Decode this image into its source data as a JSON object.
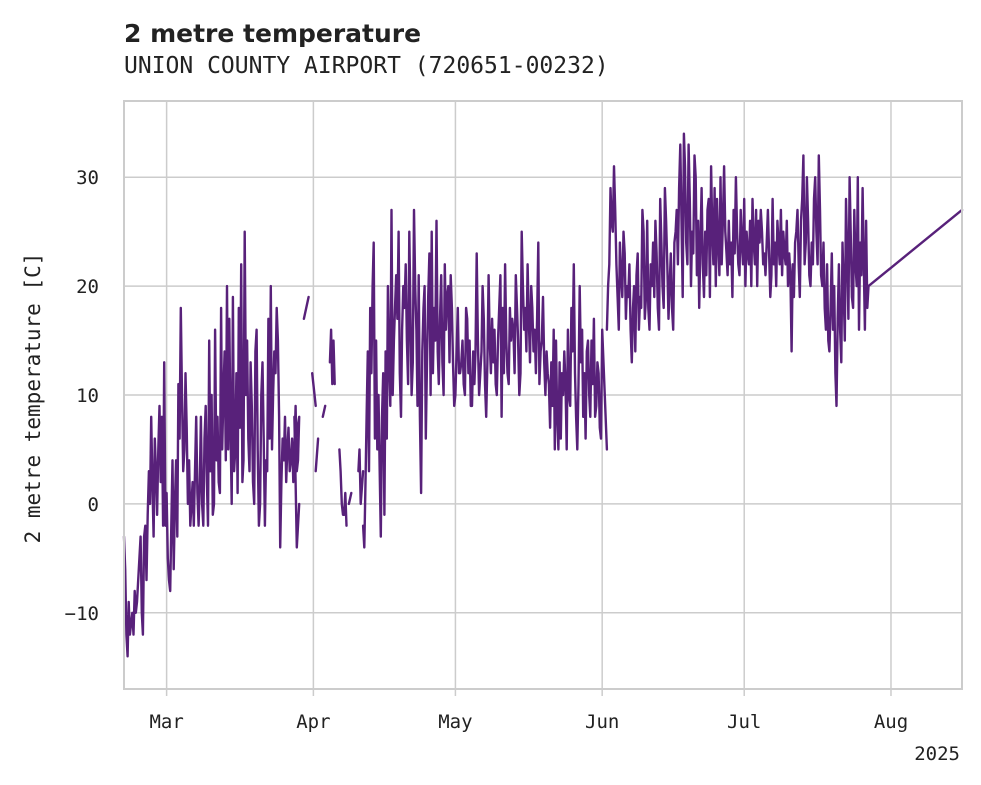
{
  "chart_data": {
    "type": "line",
    "title": "2 metre temperature",
    "subtitle": "UNION COUNTY AIRPORT (720651-00232)",
    "xlabel": "",
    "ylabel": "2 metre temperature [C]",
    "x_unit": "day of year 2025 (Feb 1 = 32)",
    "xlim": [
      51,
      228
    ],
    "ylim": [
      -17,
      37
    ],
    "year_label": "2025",
    "grid": true,
    "x_ticks": [
      {
        "label": "Mar",
        "value": 60
      },
      {
        "label": "Apr",
        "value": 91
      },
      {
        "label": "May",
        "value": 121
      },
      {
        "label": "Jun",
        "value": 152
      },
      {
        "label": "Jul",
        "value": 182
      },
      {
        "label": "Aug",
        "value": 213
      }
    ],
    "y_ticks": [
      {
        "label": "−10",
        "value": -10
      },
      {
        "label": "0",
        "value": 0
      },
      {
        "label": "10",
        "value": 10
      },
      {
        "label": "20",
        "value": 20
      },
      {
        "label": "30",
        "value": 30
      }
    ],
    "series": [
      {
        "name": "2 metre temperature",
        "color": "#58217a",
        "segments": [
          {
            "start": 51,
            "end": 87,
            "step": 0.25,
            "values": [
              -3,
              -6,
              -12,
              -14,
              -9,
              -12,
              -11,
              -10,
              -12,
              -8,
              -10,
              -9,
              -7,
              -5,
              -3,
              -10,
              -12,
              -3,
              -2,
              -7,
              -1,
              3,
              0,
              8,
              2,
              -3,
              6,
              3,
              -1,
              5,
              9,
              2,
              8,
              -2,
              13,
              -2,
              1,
              -5,
              -7,
              -8,
              -2,
              4,
              -6,
              0,
              4,
              -3,
              11,
              6,
              18,
              10,
              3,
              5,
              12,
              7,
              0,
              4,
              -2,
              0,
              2,
              -2,
              3,
              8,
              1,
              -2,
              2,
              8,
              0,
              -2,
              6,
              9,
              2,
              -2,
              15,
              3,
              10,
              -1,
              0,
              16,
              4,
              8,
              2,
              1,
              18,
              5,
              10,
              14,
              4,
              20,
              5,
              17,
              7,
              0,
              19,
              3,
              5,
              12,
              1,
              18,
              7,
              22,
              2,
              4,
              25,
              10,
              15,
              6,
              3,
              13,
              9,
              2,
              0,
              14,
              16,
              5,
              -2,
              0,
              10,
              13,
              6,
              -2,
              4,
              3,
              17,
              6,
              20,
              5,
              10,
              14,
              12,
              18,
              15,
              8,
              -4,
              2,
              6,
              4,
              8,
              2,
              5,
              7,
              3,
              4,
              6,
              2,
              5,
              9,
              3,
              4,
              8,
              5
            ]
          },
          {
            "start": 87,
            "end": 88,
            "step": 0.25,
            "values": [
              8,
              2,
              -4,
              0
            ]
          },
          {
            "start": 89,
            "end": 90,
            "step": 0.25,
            "values": [
              17,
              19
            ]
          },
          {
            "start": 90.75,
            "end": 91.5,
            "step": 0.25,
            "values": [
              12,
              9
            ]
          },
          {
            "start": 91.5,
            "end": 92,
            "step": 0.25,
            "values": [
              3,
              6
            ]
          },
          {
            "start": 93,
            "end": 93.5,
            "step": 0.25,
            "values": [
              8,
              9
            ]
          },
          {
            "start": 94.5,
            "end": 95.5,
            "step": 0.25,
            "values": [
              13,
              16,
              11,
              15,
              11
            ]
          },
          {
            "start": 96.5,
            "end": 98,
            "step": 0.25,
            "values": [
              5,
              3,
              0,
              -1,
              -1,
              1,
              -2
            ]
          },
          {
            "start": 98.5,
            "end": 99,
            "step": 0.25,
            "values": [
              0,
              1
            ]
          },
          {
            "start": 100.5,
            "end": 101.5,
            "step": 0.25,
            "values": [
              3,
              5,
              0,
              3
            ]
          },
          {
            "start": 101.5,
            "end": 153,
            "step": 0.25,
            "values": [
              -2,
              -4,
              2,
              8,
              14,
              3,
              18,
              12,
              20,
              24,
              6,
              15,
              5,
              10,
              3,
              -3,
              8,
              12,
              -1,
              14,
              6,
              20,
              13,
              9,
              27,
              10,
              15,
              18,
              21,
              17,
              25,
              12,
              8,
              16,
              20,
              18,
              22,
              15,
              11,
              25,
              18,
              10,
              13,
              27,
              20,
              16,
              9,
              21,
              8,
              1,
              14,
              18,
              20,
              6,
              13,
              19,
              23,
              10,
              25,
              12,
              18,
              15,
              26,
              14,
              11,
              17,
              21,
              13,
              10,
              22,
              16,
              19,
              20,
              13,
              21,
              18,
              13,
              9,
              10,
              14,
              18,
              12,
              12,
              13,
              15,
              11,
              10,
              18,
              17,
              12,
              15,
              9,
              9,
              14,
              11,
              14,
              23,
              15,
              10,
              12,
              14,
              20,
              17,
              11,
              8,
              13,
              21,
              15,
              12,
              17,
              13,
              16,
              11,
              10,
              15,
              18,
              21,
              8,
              18,
              12,
              22,
              15,
              12,
              11,
              18,
              15,
              17,
              16,
              12,
              21,
              18,
              15,
              10,
              12,
              25,
              20,
              16,
              18,
              14,
              22,
              17,
              13,
              20,
              18,
              14,
              16,
              12,
              17,
              24,
              11,
              14,
              15,
              19,
              13,
              10,
              14,
              12,
              11,
              7,
              13,
              9,
              16,
              5,
              15,
              8,
              5,
              13,
              6,
              12,
              10,
              14,
              11,
              5,
              16,
              10,
              9,
              18,
              14,
              22,
              12,
              8,
              5,
              11,
              20,
              13,
              16,
              8,
              12,
              6,
              14,
              15,
              10,
              8,
              15,
              11,
              17,
              8,
              9,
              13,
              12,
              7,
              6,
              16,
              5
            ]
          },
          {
            "start": 153,
            "end": 228,
            "step": 0.25,
            "values": [
              16,
              20,
              22,
              29,
              26,
              25,
              31,
              27,
              22,
              19,
              16,
              24,
              21,
              19,
              25,
              23,
              17,
              20,
              19,
              22,
              16,
              13,
              18,
              20,
              14,
              21,
              23,
              16,
              19,
              18,
              27,
              25,
              17,
              19,
              26,
              18,
              16,
              22,
              20,
              24,
              19,
              26,
              23,
              18,
              16,
              28,
              24,
              20,
              18,
              29,
              26,
              22,
              17,
              20,
              23,
              18,
              16,
              24,
              25,
              27,
              22,
              29,
              33,
              26,
              19,
              34,
              31,
              24,
              22,
              33,
              28,
              20,
              25,
              23,
              32,
              30,
              21,
              26,
              18,
              24,
              29,
              22,
              19,
              25,
              21,
              27,
              28,
              19,
              31,
              25,
              22,
              29,
              20,
              28,
              24,
              21,
              30,
              22,
              26,
              31,
              25,
              23,
              21,
              26,
              22,
              24,
              19,
              27,
              23,
              30,
              25,
              22,
              21,
              27,
              24,
              22,
              28,
              20,
              25,
              23,
              22,
              26,
              20,
              28,
              24,
              22,
              27,
              20,
              26,
              24,
              27,
              25,
              22,
              23,
              21,
              24,
              27,
              23,
              19,
              21,
              28,
              22,
              24,
              20,
              26,
              24,
              22,
              27,
              21,
              25,
              23,
              22,
              26,
              20,
              23,
              21,
              14,
              22,
              19,
              24,
              25,
              27,
              22,
              19,
              26,
              28,
              32,
              22,
              24,
              30,
              26,
              21,
              20,
              24,
              22,
              28,
              30,
              25,
              22,
              32,
              27,
              21,
              20,
              24,
              18,
              16,
              22,
              15,
              14,
              18,
              23,
              16,
              20,
              12,
              9,
              17,
              22,
              16,
              13,
              24,
              20,
              15,
              28,
              23,
              17,
              30,
              25,
              19,
              18,
              27,
              22,
              20,
              30,
              16,
              24,
              21,
              29,
              22,
              16,
              26,
              18,
              20,
              27
            ]
          }
        ]
      }
    ]
  }
}
